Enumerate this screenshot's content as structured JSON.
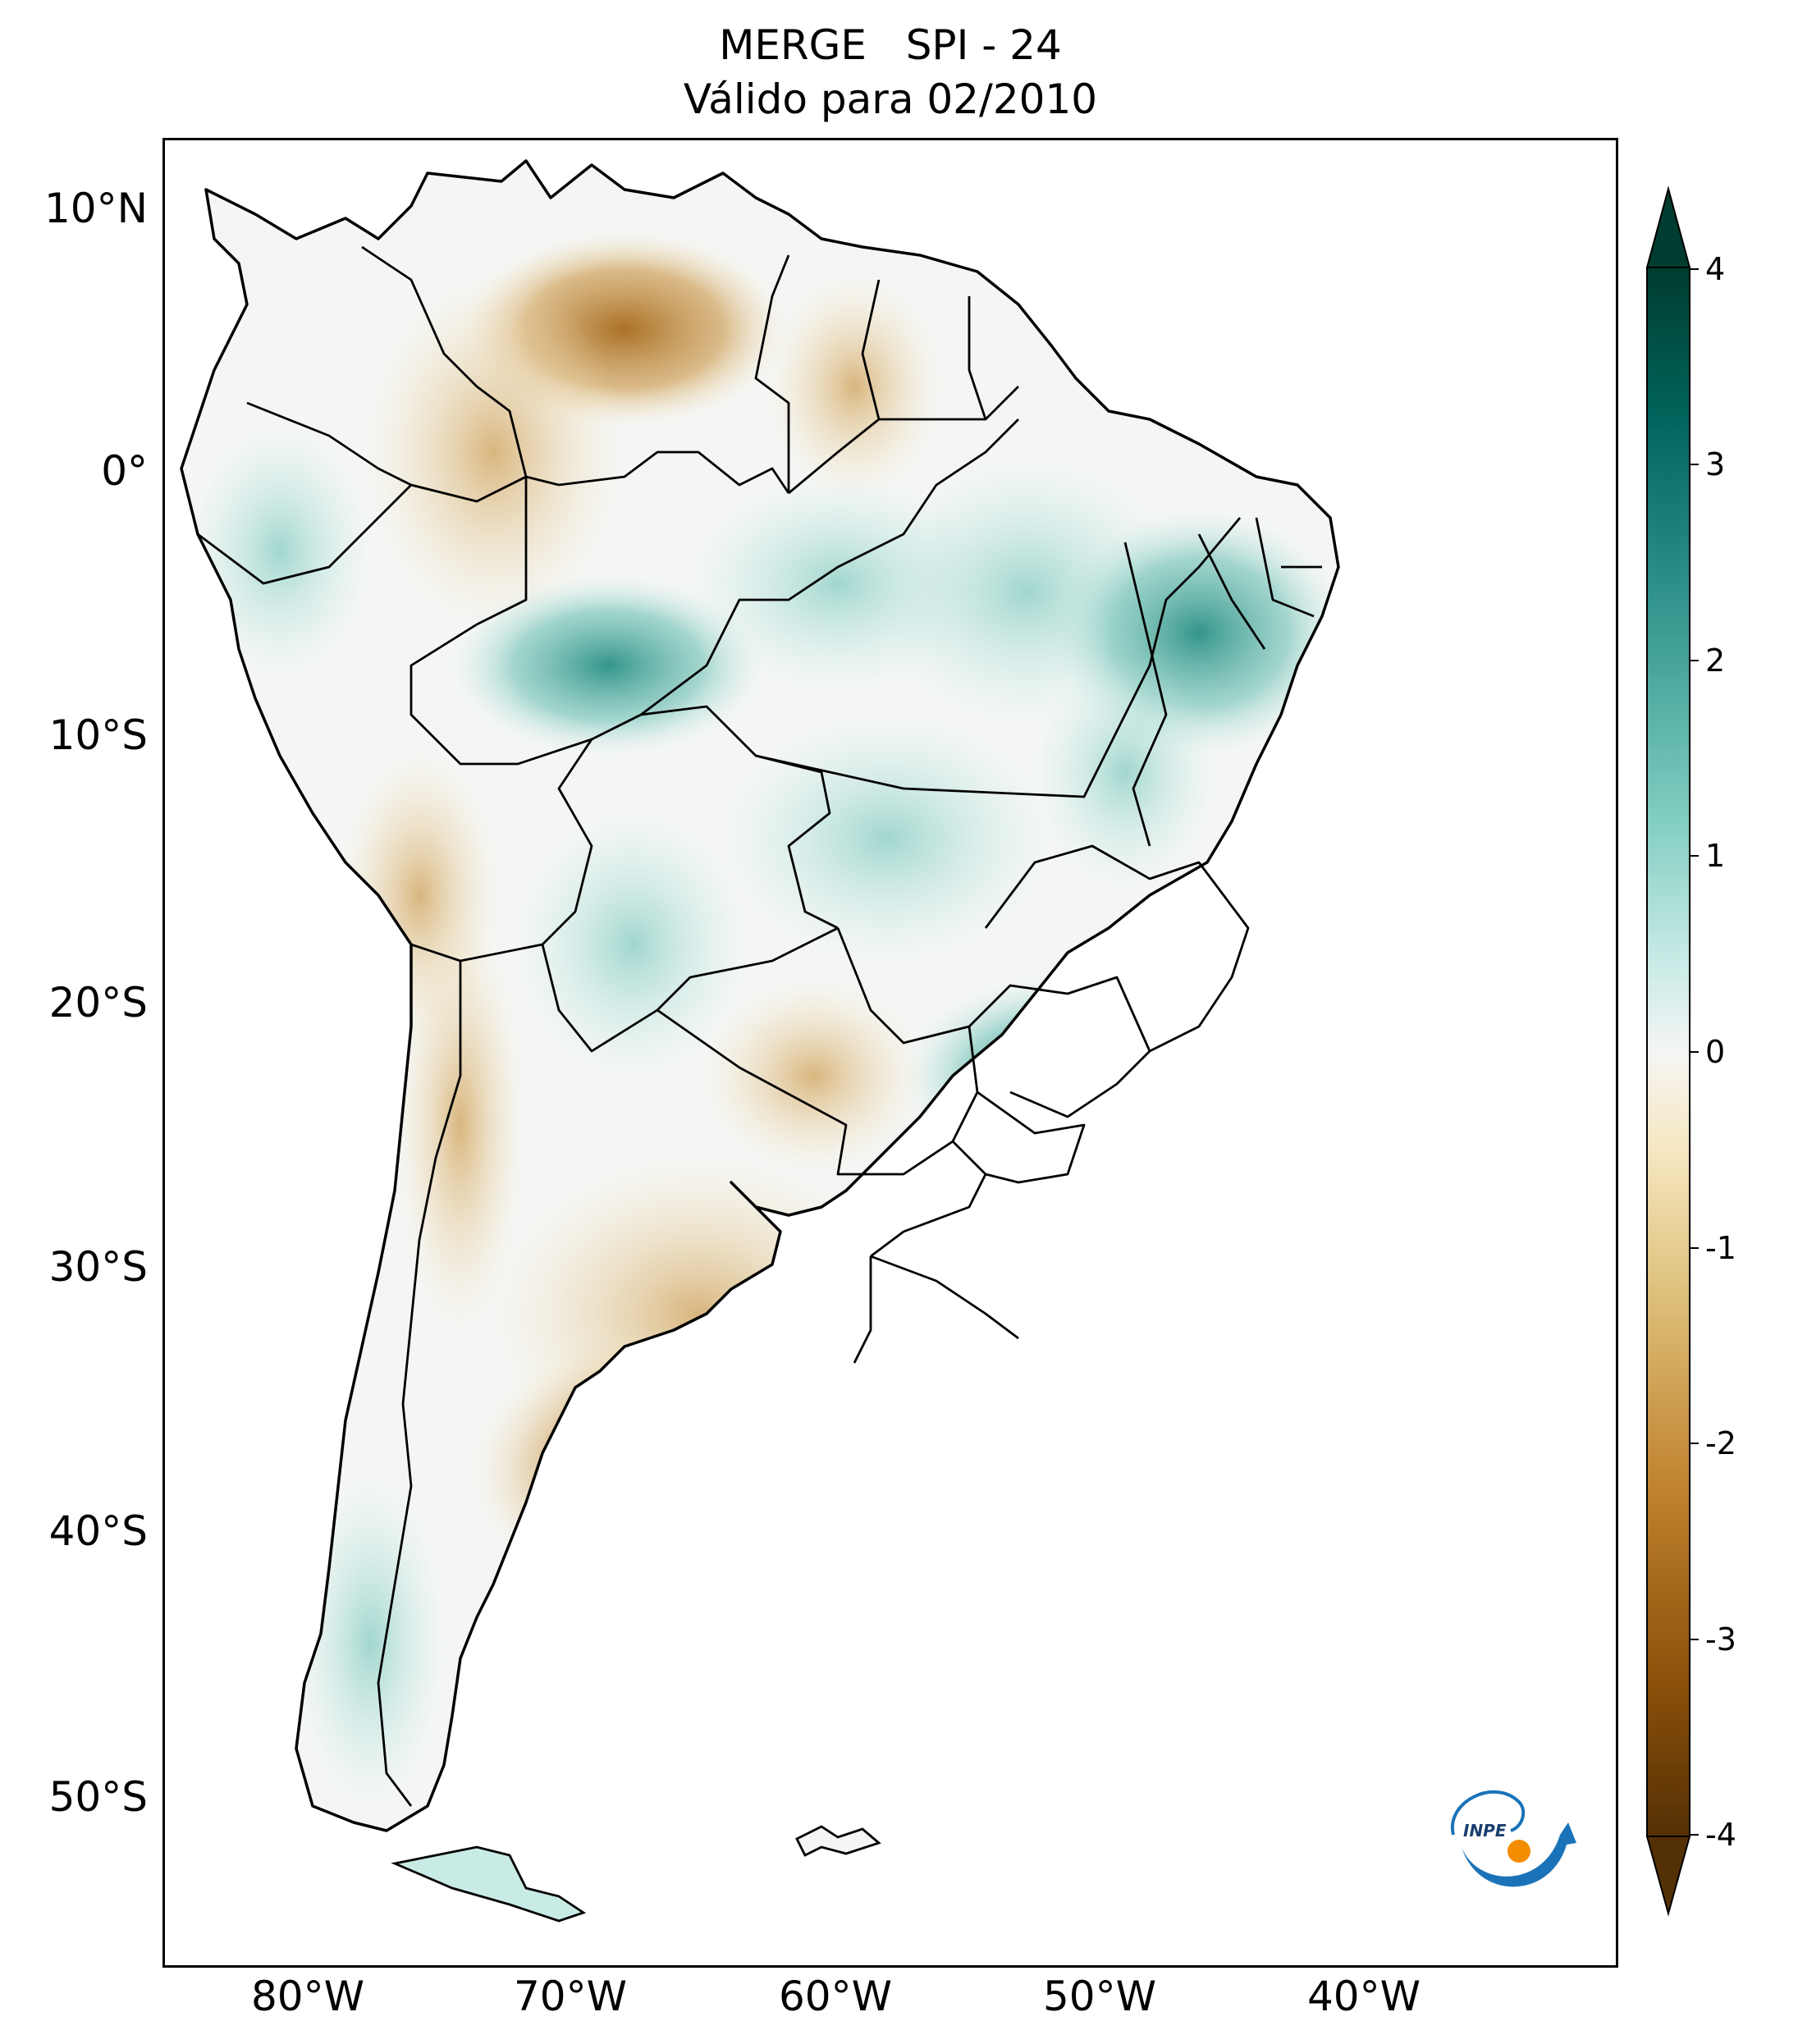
{
  "title": {
    "line1": "MERGE   SPI - 24",
    "line2": "Válido para 02/2010"
  },
  "map": {
    "region": "South America",
    "variable": "SPI - 24",
    "lat_axis": {
      "labels": [
        "10°N",
        "0°",
        "10°S",
        "20°S",
        "30°S",
        "40°S",
        "50°S"
      ],
      "values": [
        10,
        0,
        -10,
        -20,
        -30,
        -40,
        -50
      ],
      "range": [
        -56,
        13
      ]
    },
    "lon_axis": {
      "labels": [
        "80°W",
        "70°W",
        "60°W",
        "50°W",
        "40°W"
      ],
      "values": [
        -80,
        -70,
        -60,
        -50,
        -40
      ],
      "range": [
        -85,
        -30
      ]
    }
  },
  "colorbar": {
    "labels": [
      "4",
      "3",
      "2",
      "1",
      "0",
      "-1",
      "-2",
      "-3",
      "-4"
    ],
    "values": [
      4,
      3,
      2,
      1,
      0,
      -1,
      -2,
      -3,
      -4
    ],
    "colormap": "BrBG",
    "colors": {
      "dry_extreme": "#543005",
      "dry_strong": "#8c510a",
      "dry_moderate": "#bf812d",
      "dry_light": "#dfc27d",
      "dry_faint": "#f6e8c3",
      "neutral": "#f5f5f5",
      "wet_faint": "#c7eae5",
      "wet_light": "#80cdc1",
      "wet_moderate": "#35978f",
      "wet_strong": "#01665e",
      "wet_extreme": "#003c30"
    }
  },
  "logo": {
    "text": "INPE",
    "colors": {
      "swoosh": "#1a73b8",
      "dot": "#f28c00"
    }
  }
}
